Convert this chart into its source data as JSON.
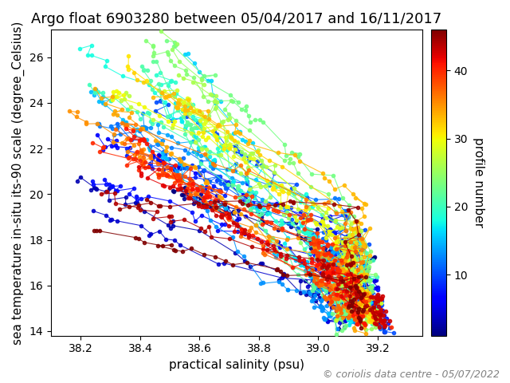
{
  "title": "Argo float 6903280 between 05/04/2017 and 16/11/2017",
  "xlabel": "practical salinity (psu)",
  "ylabel": "sea temperature in-situ its-90 scale (degree_Celsius)",
  "xlim": [
    38.1,
    39.35
  ],
  "ylim": [
    13.8,
    27.2
  ],
  "xticks": [
    38.2,
    38.4,
    38.6,
    38.8,
    39.0,
    39.2
  ],
  "yticks": [
    14,
    16,
    18,
    20,
    22,
    24,
    26
  ],
  "colorbar_label": "profile number",
  "colorbar_ticks": [
    10,
    20,
    30,
    40
  ],
  "n_profiles": 46,
  "cmap": "jet",
  "vmin": 1,
  "vmax": 46,
  "copyright_text": "© coriolis data centre - 05/07/2022",
  "title_fontsize": 13,
  "label_fontsize": 11,
  "tick_fontsize": 10,
  "copyright_fontsize": 9,
  "linewidth": 0.8,
  "markersize": 3.0
}
